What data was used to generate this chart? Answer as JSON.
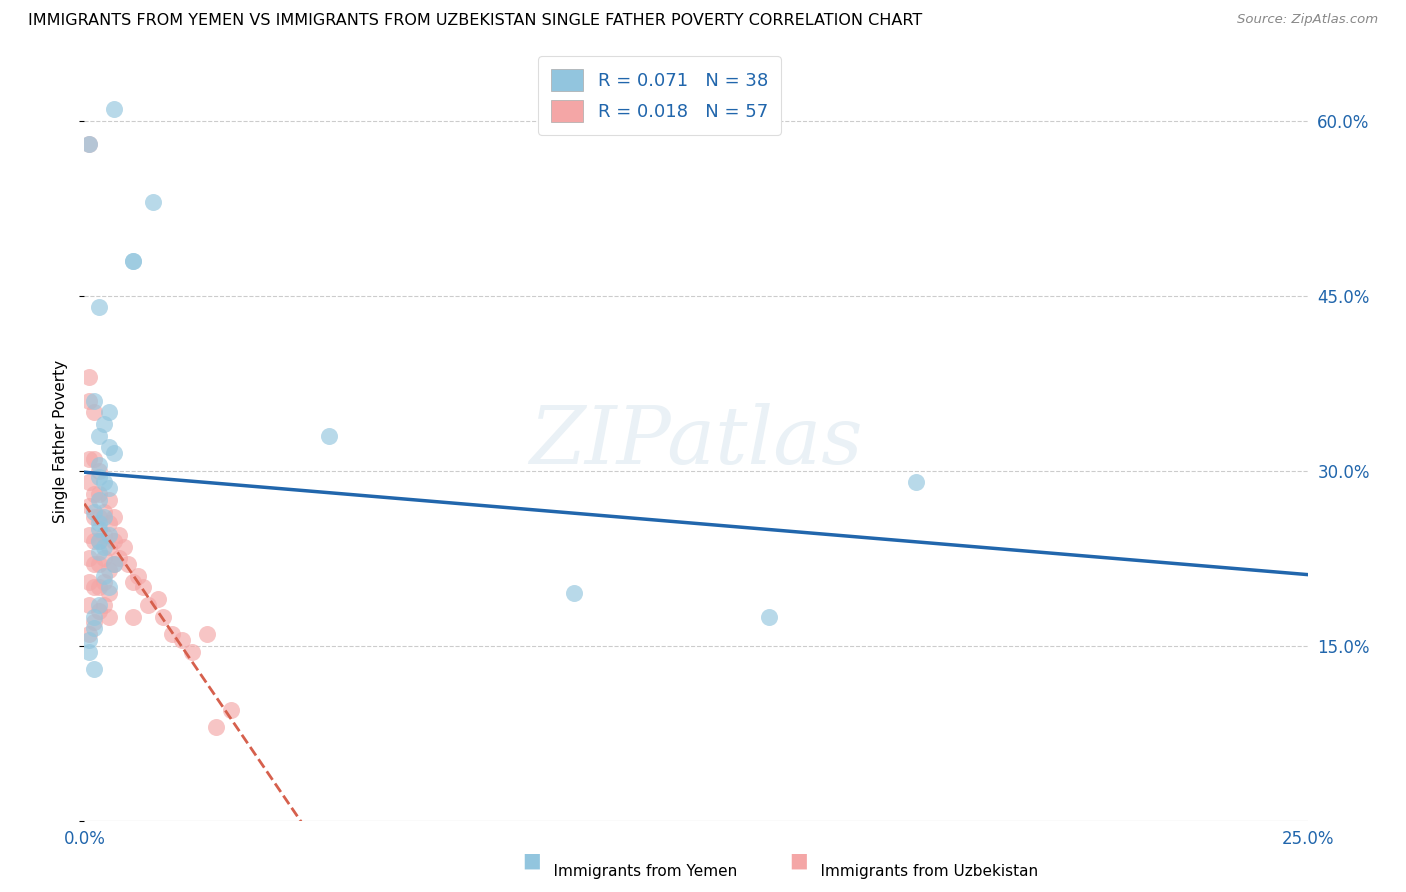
{
  "title": "IMMIGRANTS FROM YEMEN VS IMMIGRANTS FROM UZBEKISTAN SINGLE FATHER POVERTY CORRELATION CHART",
  "source": "Source: ZipAtlas.com",
  "ylabel": "Single Father Poverty",
  "legend_label1": "Immigrants from Yemen",
  "legend_label2": "Immigrants from Uzbekistan",
  "R1": 0.071,
  "N1": 38,
  "R2": 0.018,
  "N2": 57,
  "color1": "#92c5de",
  "color2": "#f4a6a6",
  "line_color1": "#2166ac",
  "line_color2": "#d6604d",
  "xlim": [
    0.0,
    0.25
  ],
  "ylim": [
    0.0,
    0.65
  ],
  "watermark": "ZIPatlas",
  "yemen_x": [
    0.006,
    0.001,
    0.014,
    0.01,
    0.01,
    0.003,
    0.002,
    0.005,
    0.004,
    0.003,
    0.005,
    0.006,
    0.003,
    0.003,
    0.004,
    0.005,
    0.003,
    0.002,
    0.004,
    0.003,
    0.003,
    0.005,
    0.003,
    0.004,
    0.003,
    0.006,
    0.05,
    0.1,
    0.14,
    0.17,
    0.004,
    0.005,
    0.003,
    0.002,
    0.002,
    0.001,
    0.001,
    0.002
  ],
  "yemen_y": [
    0.61,
    0.58,
    0.53,
    0.48,
    0.48,
    0.44,
    0.36,
    0.35,
    0.34,
    0.33,
    0.32,
    0.315,
    0.305,
    0.295,
    0.29,
    0.285,
    0.275,
    0.265,
    0.26,
    0.255,
    0.25,
    0.245,
    0.24,
    0.235,
    0.23,
    0.22,
    0.33,
    0.195,
    0.175,
    0.29,
    0.21,
    0.2,
    0.185,
    0.175,
    0.165,
    0.155,
    0.145,
    0.13
  ],
  "uzbek_x": [
    0.001,
    0.001,
    0.001,
    0.001,
    0.001,
    0.001,
    0.001,
    0.001,
    0.001,
    0.001,
    0.002,
    0.002,
    0.002,
    0.002,
    0.002,
    0.002,
    0.002,
    0.003,
    0.003,
    0.003,
    0.003,
    0.003,
    0.003,
    0.003,
    0.004,
    0.004,
    0.004,
    0.004,
    0.004,
    0.005,
    0.005,
    0.005,
    0.005,
    0.005,
    0.005,
    0.006,
    0.006,
    0.006,
    0.007,
    0.007,
    0.008,
    0.009,
    0.01,
    0.01,
    0.011,
    0.012,
    0.013,
    0.015,
    0.016,
    0.018,
    0.02,
    0.022,
    0.025,
    0.027,
    0.03,
    0.001,
    0.002
  ],
  "uzbek_y": [
    0.58,
    0.38,
    0.36,
    0.31,
    0.29,
    0.27,
    0.245,
    0.225,
    0.205,
    0.185,
    0.35,
    0.31,
    0.28,
    0.26,
    0.24,
    0.22,
    0.2,
    0.3,
    0.28,
    0.26,
    0.24,
    0.22,
    0.2,
    0.18,
    0.265,
    0.245,
    0.225,
    0.205,
    0.185,
    0.275,
    0.255,
    0.235,
    0.215,
    0.195,
    0.175,
    0.26,
    0.24,
    0.22,
    0.245,
    0.225,
    0.235,
    0.22,
    0.205,
    0.175,
    0.21,
    0.2,
    0.185,
    0.19,
    0.175,
    0.16,
    0.155,
    0.145,
    0.16,
    0.08,
    0.095,
    0.16,
    0.17
  ]
}
